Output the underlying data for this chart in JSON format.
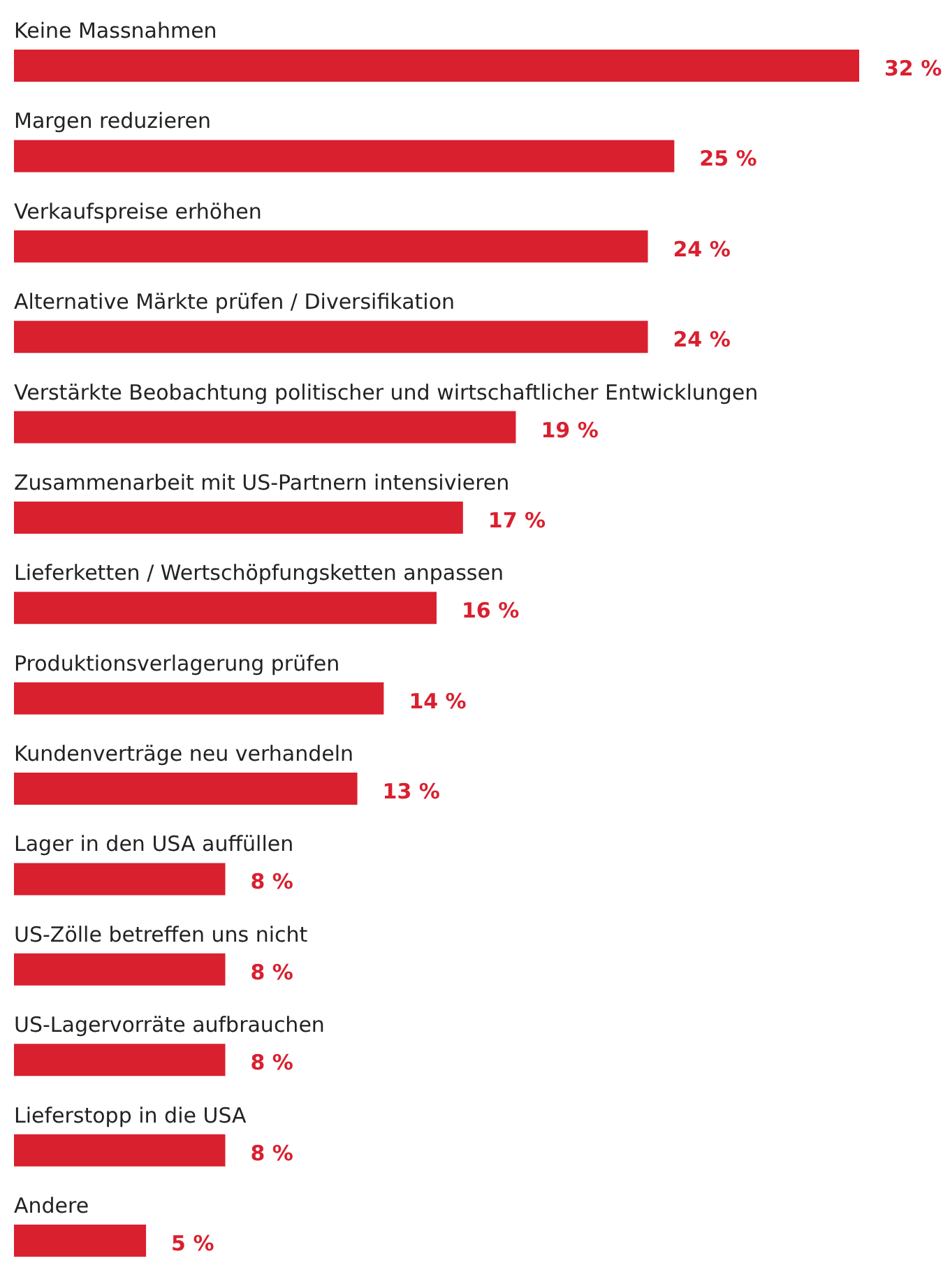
{
  "chart_data": {
    "type": "bar",
    "orientation": "horizontal",
    "categories": [
      "Keine Massnahmen",
      "Margen reduzieren",
      "Verkaufspreise erhöhen",
      "Alternative Märkte prüfen / Diversifikation",
      "Verstärkte Beobachtung politischer und wirtschaftlicher Entwicklungen",
      "Zusammenarbeit mit US-Partnern intensivieren",
      "Lieferketten / Wertschöpfungsketten anpassen",
      "Produktionsverlagerung prüfen",
      "Kundenverträge neu verhandeln",
      "Lager in den USA auffüllen",
      "US-Zölle betreffen uns nicht",
      "US-Lagervorräte aufbrauchen",
      "Lieferstopp in die USA",
      "Andere"
    ],
    "values": [
      32,
      25,
      24,
      24,
      19,
      17,
      16,
      14,
      13,
      8,
      8,
      8,
      8,
      5
    ],
    "value_labels": [
      "32 %",
      "25 %",
      "24 %",
      "24 %",
      "19 %",
      "17 %",
      "16 %",
      "14 %",
      "13 %",
      "8 %",
      "8 %",
      "8 %",
      "8 %",
      "5 %"
    ],
    "color": "#d9202f"
  }
}
